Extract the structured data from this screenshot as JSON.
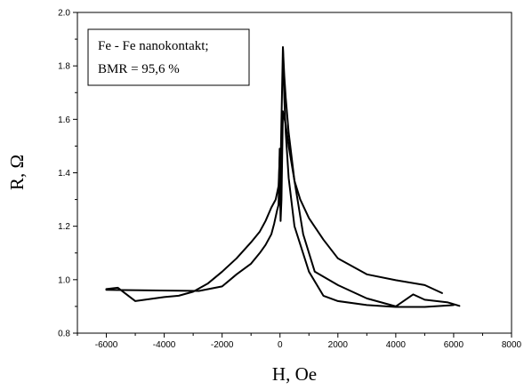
{
  "chart_data": {
    "type": "line",
    "title": "",
    "xlabel": "H, Oe",
    "ylabel": "R, Ω",
    "xlim": [
      -7000,
      8000
    ],
    "ylim": [
      0.8,
      2.0
    ],
    "xticks": [
      -6000,
      -4000,
      -2000,
      0,
      2000,
      4000,
      6000,
      8000
    ],
    "yticks": [
      0.8,
      1.0,
      1.2,
      1.4,
      1.6,
      1.8,
      2.0
    ],
    "ytick_labels": [
      "0.8",
      "1.0",
      "1.2",
      "1.4",
      "1.6",
      "1.8",
      "2.0"
    ],
    "grid": false,
    "annotation": {
      "lines": [
        "Fe - Fe nanokontakt;",
        "BMR = 95,6 %"
      ],
      "placement": "top-left"
    },
    "series": [
      {
        "x": [
          -6000,
          -5600,
          -5000,
          -4000,
          -3500,
          -3000,
          -2500,
          -2000,
          -1500,
          -1000,
          -700,
          -500,
          -300,
          -150,
          -50,
          0
        ],
        "y": [
          0.965,
          0.97,
          0.92,
          0.935,
          0.94,
          0.955,
          0.985,
          1.03,
          1.08,
          1.14,
          1.18,
          1.22,
          1.27,
          1.3,
          1.35,
          1.48
        ]
      },
      {
        "x": [
          -50,
          -10,
          0,
          20,
          50,
          100,
          200,
          300,
          500,
          700,
          1000,
          1500,
          2000,
          3000,
          4000,
          5000,
          5600
        ],
        "y": [
          1.28,
          1.49,
          1.35,
          1.22,
          1.3,
          1.63,
          1.58,
          1.5,
          1.37,
          1.3,
          1.23,
          1.15,
          1.08,
          1.02,
          0.998,
          0.98,
          0.95
        ]
      },
      {
        "x": [
          -6000,
          -2800,
          -2000,
          -1500,
          -1000,
          -700,
          -500,
          -300,
          -200,
          -100,
          0,
          50,
          100,
          150,
          200,
          300,
          500,
          1000,
          1500,
          2000,
          3000,
          4000,
          5000,
          6000
        ],
        "y": [
          0.962,
          0.958,
          0.975,
          1.02,
          1.06,
          1.1,
          1.13,
          1.17,
          1.21,
          1.26,
          1.3,
          1.6,
          1.87,
          1.68,
          1.55,
          1.38,
          1.2,
          1.03,
          0.94,
          0.92,
          0.905,
          0.898,
          0.898,
          0.905
        ]
      },
      {
        "x": [
          6200,
          5800,
          5000,
          4600,
          4000,
          3000,
          2000,
          1200,
          800,
          500,
          300,
          200,
          150,
          100
        ],
        "y": [
          0.902,
          0.915,
          0.925,
          0.945,
          0.9,
          0.93,
          0.98,
          1.03,
          1.17,
          1.37,
          1.55,
          1.68,
          1.76,
          1.87
        ]
      }
    ]
  }
}
